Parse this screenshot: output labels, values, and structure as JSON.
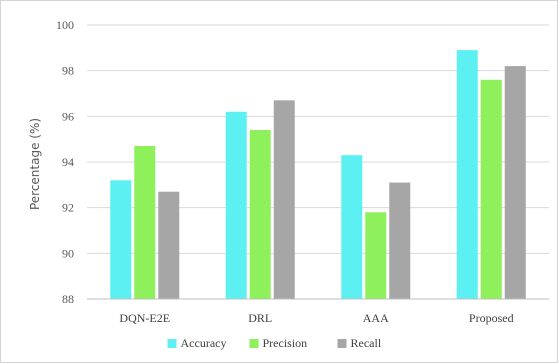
{
  "chart_data": {
    "type": "bar",
    "title": "",
    "xlabel": "",
    "ylabel": "Percentage (%)",
    "ylim": [
      88,
      100
    ],
    "yticks": [
      88,
      90,
      92,
      94,
      96,
      98,
      100
    ],
    "grid": true,
    "legend_position": "bottom",
    "categories": [
      "DQN-E2E",
      "DRL",
      "AAA",
      "Proposed"
    ],
    "series": [
      {
        "name": "Accuracy",
        "color": "#5CF0F2",
        "values": [
          93.2,
          96.2,
          94.3,
          98.9
        ]
      },
      {
        "name": "Precision",
        "color": "#8EF05A",
        "values": [
          94.7,
          95.4,
          91.8,
          97.6
        ]
      },
      {
        "name": "Recall",
        "color": "#A6A6A6",
        "values": [
          92.7,
          96.7,
          93.1,
          98.2
        ]
      }
    ]
  }
}
